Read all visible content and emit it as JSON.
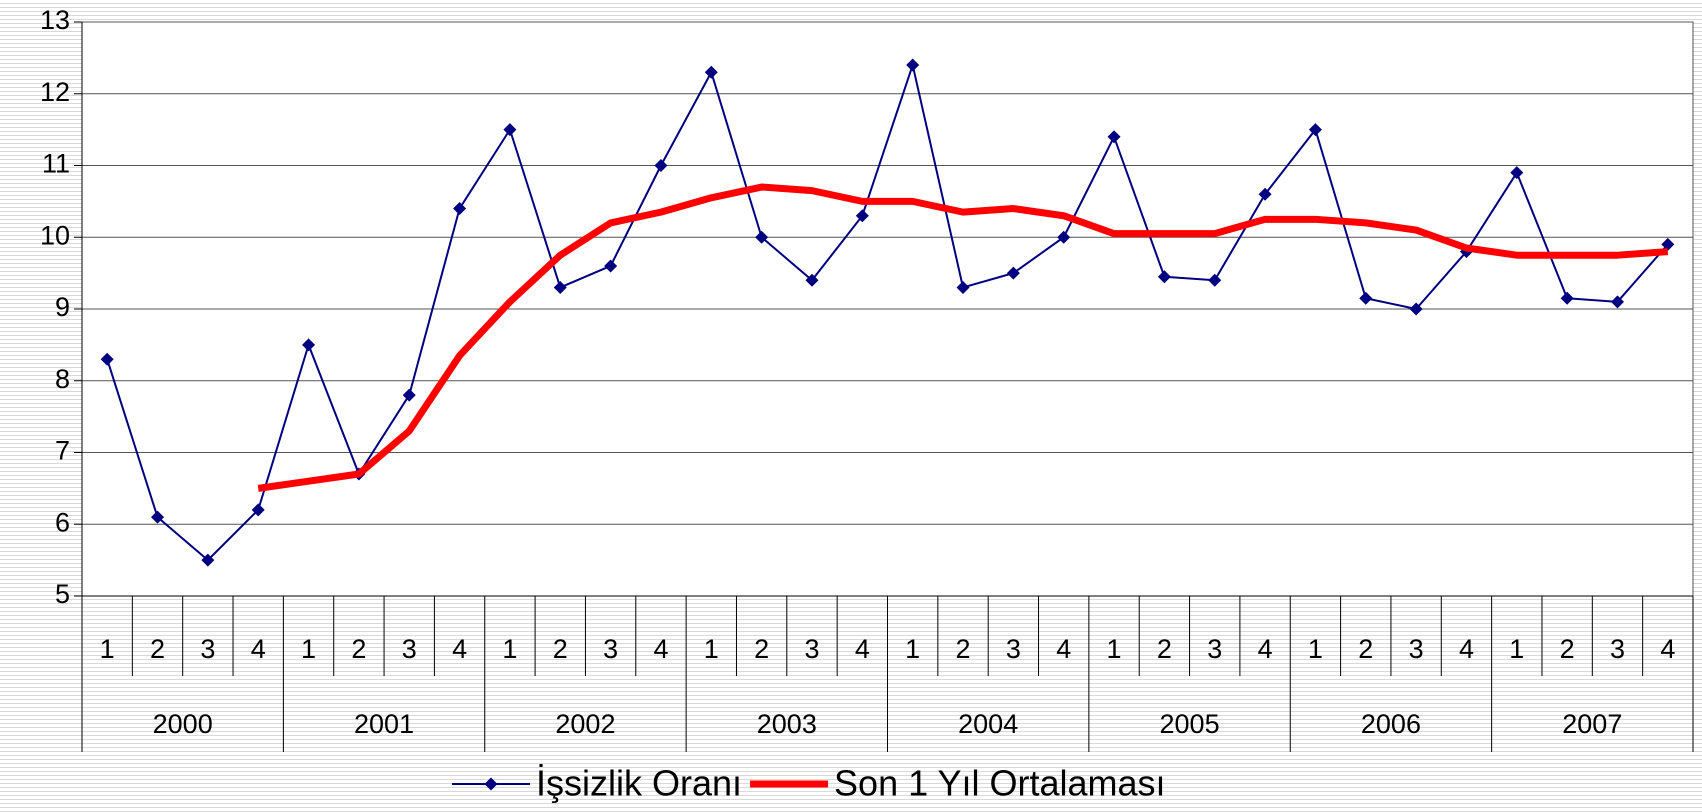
{
  "chart_data": {
    "type": "line",
    "categories": [
      "1",
      "2",
      "3",
      "4",
      "1",
      "2",
      "3",
      "4",
      "1",
      "2",
      "3",
      "4",
      "1",
      "2",
      "3",
      "4",
      "1",
      "2",
      "3",
      "4",
      "1",
      "2",
      "3",
      "4",
      "1",
      "2",
      "3",
      "4",
      "1",
      "2",
      "3",
      "4"
    ],
    "category_groups": [
      "2000",
      "2001",
      "2002",
      "2003",
      "2004",
      "2005",
      "2006",
      "2007"
    ],
    "series": [
      {
        "name": "İşsizlik Oranı",
        "color": "#000080",
        "marker": "diamond",
        "values": [
          8.3,
          6.1,
          5.5,
          6.2,
          8.5,
          6.7,
          7.8,
          10.4,
          11.5,
          9.3,
          9.6,
          11.0,
          12.3,
          10.0,
          9.4,
          10.3,
          12.4,
          9.3,
          9.5,
          10.0,
          11.4,
          9.45,
          9.4,
          10.6,
          11.5,
          9.15,
          9.0,
          9.8,
          10.9,
          9.15,
          9.1,
          9.9
        ]
      },
      {
        "name": "Son 1 Yıl Ortalaması",
        "color": "#ff0000",
        "values": [
          null,
          null,
          null,
          6.5,
          6.6,
          6.7,
          7.3,
          8.35,
          9.1,
          9.75,
          10.2,
          10.35,
          10.55,
          10.7,
          10.65,
          10.5,
          10.5,
          10.35,
          10.4,
          10.3,
          10.05,
          10.05,
          10.05,
          10.25,
          10.25,
          10.2,
          10.1,
          9.85,
          9.75,
          9.75,
          9.75,
          9.8
        ]
      }
    ],
    "ylim": [
      5,
      13
    ],
    "yticks": [
      5,
      6,
      7,
      8,
      9,
      10,
      11,
      12,
      13
    ],
    "grid": true,
    "legend": "bottom"
  }
}
